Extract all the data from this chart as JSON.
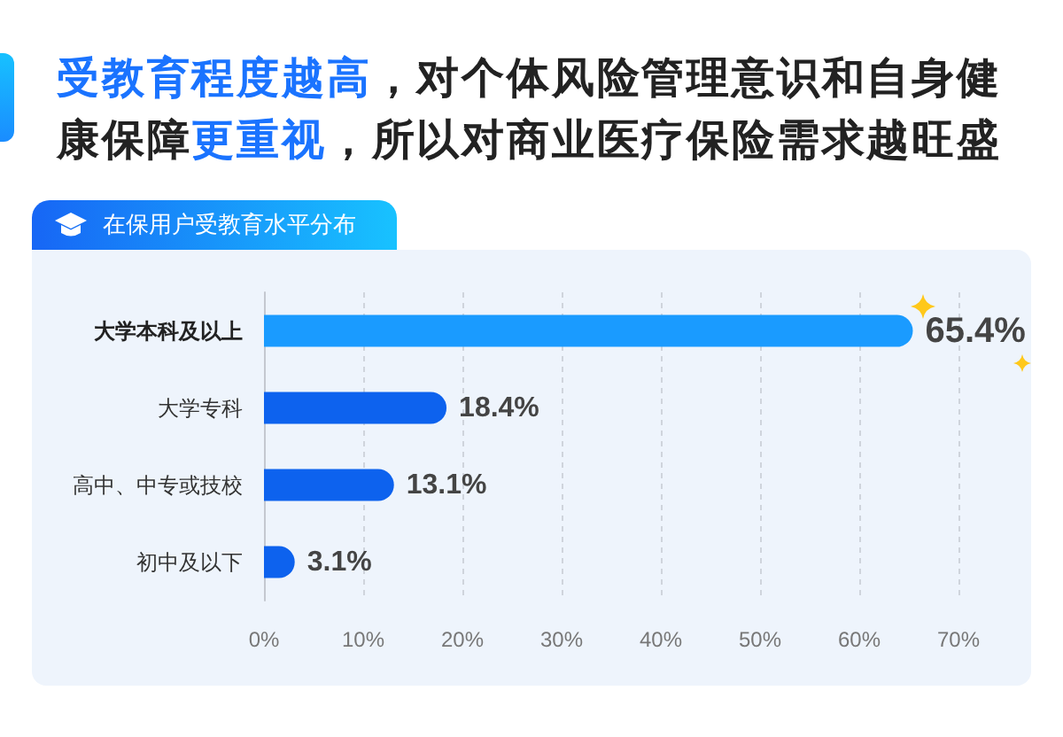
{
  "chart_data": {
    "type": "bar",
    "orientation": "horizontal",
    "title": "受教育程度越高，对个体风险管理意识和自身健康保障更重视，所以对商业医疗保险需求越旺盛",
    "subtitle": "在保用户受教育水平分布",
    "categories": [
      "大学本科及以上",
      "大学专科",
      "高中、中专或技校",
      "初中及以下"
    ],
    "values": [
      65.4,
      18.4,
      13.1,
      3.1
    ],
    "colors": [
      "#1a9bff",
      "#0d62ee",
      "#0d62ee",
      "#0d62ee"
    ],
    "value_labels": [
      "65.4%",
      "18.4%",
      "13.1%",
      "3.1%"
    ],
    "xlim": [
      0,
      70
    ],
    "xticks": [
      {
        "value": 0,
        "label": "0%"
      },
      {
        "value": 10,
        "label": "10%"
      },
      {
        "value": 20,
        "label": "20%"
      },
      {
        "value": 30,
        "label": "30%"
      },
      {
        "value": 40,
        "label": "40%"
      },
      {
        "value": 50,
        "label": "50%"
      },
      {
        "value": 60,
        "label": "60%"
      },
      {
        "value": 70,
        "label": "70%"
      }
    ],
    "grid": "x"
  }
}
